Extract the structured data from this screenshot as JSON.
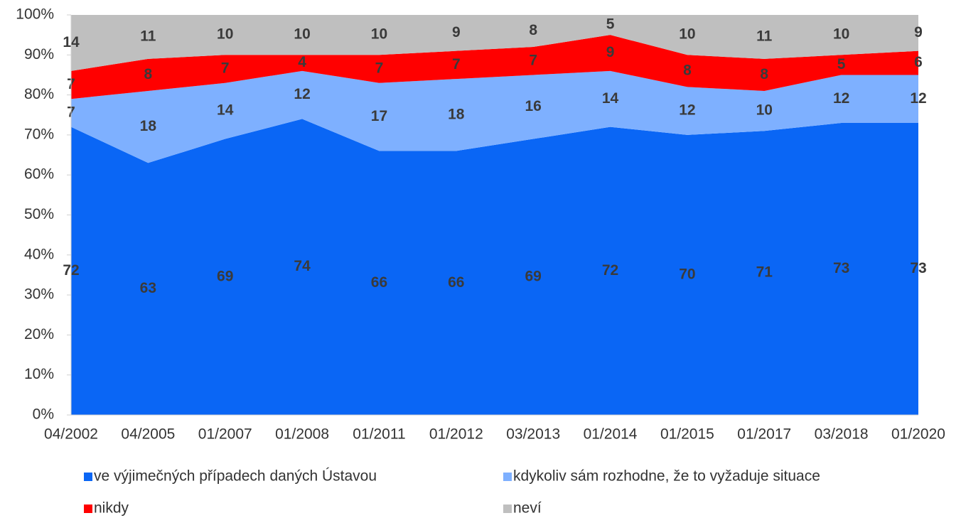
{
  "chart_data": {
    "type": "stacked_area",
    "categories": [
      "04/2002",
      "04/2005",
      "01/2007",
      "01/2008",
      "01/2011",
      "01/2012",
      "03/2013",
      "01/2014",
      "01/2015",
      "01/2017",
      "03/2018",
      "01/2020"
    ],
    "series": [
      {
        "name": "ve výjimečných případech daných Ústavou",
        "color": "#0a66f5",
        "values": [
          72,
          63,
          69,
          74,
          66,
          66,
          69,
          72,
          70,
          71,
          73,
          73
        ]
      },
      {
        "name": "kdykoliv sám rozhodne, že to vyžaduje situace",
        "color": "#7eb0ff",
        "values": [
          7,
          18,
          14,
          12,
          17,
          18,
          16,
          14,
          12,
          10,
          12,
          12
        ]
      },
      {
        "name": "nikdy",
        "color": "#ff0000",
        "values": [
          7,
          8,
          7,
          4,
          7,
          7,
          7,
          9,
          8,
          8,
          5,
          6
        ]
      },
      {
        "name": "neví",
        "color": "#bfbfbf",
        "values": [
          14,
          11,
          10,
          10,
          10,
          9,
          8,
          5,
          10,
          11,
          10,
          9
        ]
      }
    ],
    "ylim": [
      0,
      100
    ],
    "yticks": [
      {
        "value": 0,
        "label": "0%"
      },
      {
        "value": 10,
        "label": "10%"
      },
      {
        "value": 20,
        "label": "20%"
      },
      {
        "value": 30,
        "label": "30%"
      },
      {
        "value": 40,
        "label": "40%"
      },
      {
        "value": 50,
        "label": "50%"
      },
      {
        "value": 60,
        "label": "60%"
      },
      {
        "value": 70,
        "label": "70%"
      },
      {
        "value": 80,
        "label": "80%"
      },
      {
        "value": 90,
        "label": "90%"
      },
      {
        "value": 100,
        "label": "100%"
      }
    ],
    "legend": "bottom"
  }
}
